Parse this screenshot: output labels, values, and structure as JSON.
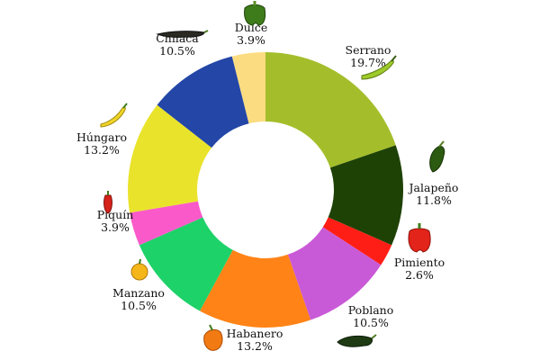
{
  "chart_data": {
    "type": "pie",
    "variant": "donut",
    "title": "",
    "categories": [
      "Serrano",
      "Jalapeño",
      "Pimiento",
      "Poblano",
      "Habanero",
      "Manzano",
      "Piquín",
      "Húngaro",
      "Chilaca",
      "Dulce"
    ],
    "values": [
      19.7,
      11.8,
      2.6,
      10.5,
      13.2,
      10.5,
      3.9,
      13.2,
      10.5,
      3.9
    ],
    "value_labels": [
      "19.7%",
      "11.8%",
      "2.6%",
      "10.5%",
      "13.2%",
      "10.5%",
      "3.9%",
      "13.2%",
      "10.5%",
      "3.9%"
    ],
    "colors": [
      "#a4be2b",
      "#1e4206",
      "#ff1e16",
      "#c95ad7",
      "#ff8316",
      "#1dd269",
      "#fa5ac9",
      "#e9e32c",
      "#2346a7",
      "#fbdc80"
    ],
    "icons": [
      "green-chili-icon",
      "jalapeno-icon",
      "red-bell-pepper-icon",
      "poblano-icon",
      "habanero-icon",
      "manzano-icon",
      "piquin-icon",
      "hungarian-pepper-icon",
      "chilaca-icon",
      "green-bell-pepper-icon"
    ],
    "legend": "none"
  }
}
